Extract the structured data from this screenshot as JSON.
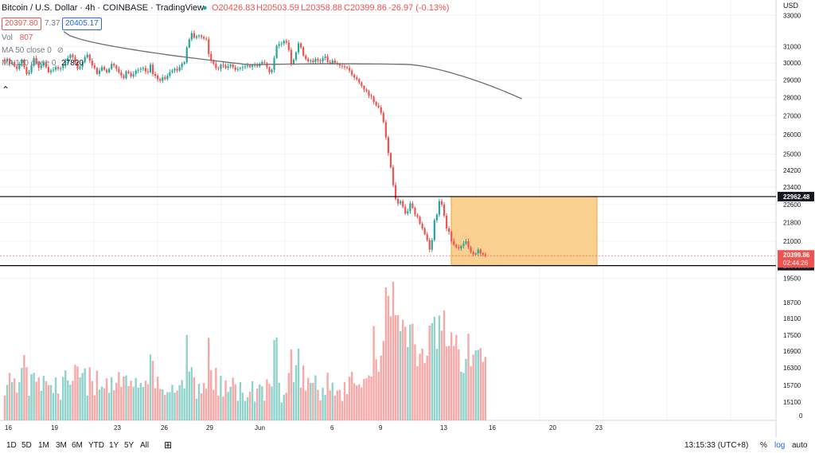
{
  "header": {
    "symbol_text": "Bitcoin / U.S. Dollar · 4h · COINBASE · TradingView",
    "ohlc": {
      "open": "O20426.83",
      "high": "H20503.59",
      "low": "L20358.88",
      "close": "C20399.86",
      "change": "-26.97 (-0.13%)"
    },
    "sell_price": "20397.80",
    "spread": "7.37",
    "buy_price": "20405.17"
  },
  "indicators": {
    "vol_label": "Vol",
    "vol_value": "807",
    "ma50_label": "MA 50 close 0",
    "ma120_label": "MA 120 close 0",
    "ma120_value": "27820"
  },
  "toolbar": {
    "ranges": [
      "1D",
      "5D",
      "1M",
      "3M",
      "6M",
      "YTD",
      "1Y",
      "5Y",
      "All"
    ],
    "time": "13:15:33 (UTC+8)",
    "percent": "%",
    "log": "log",
    "auto": "auto"
  },
  "colors": {
    "up": "#26a69a",
    "down": "#ef5350",
    "up_vol": "#8fd3cc",
    "down_vol": "#f7a9a7",
    "ma": "#6f6f6f",
    "box_fill": "#f8c87d",
    "box_stroke": "#f0a23c",
    "line": "#000000"
  },
  "chart_data": {
    "type": "candlestick",
    "symbol": "BTC/USD",
    "interval": "4h",
    "exchange": "COINBASE",
    "currency_label": "USD",
    "price_axis_ticks": [
      33000,
      31000,
      30000,
      29000,
      28000,
      27000,
      26000,
      25000,
      24200,
      23400,
      22600,
      21800,
      21000,
      19500
    ],
    "volume_axis_ticks": [
      18700,
      18100,
      17500,
      16900,
      16300,
      15700,
      15100,
      0
    ],
    "ylim": [
      19300,
      33600
    ],
    "x_labels": [
      "16",
      "19",
      "23",
      "26",
      "29",
      "Jun",
      "6",
      "9",
      "13",
      "16",
      "20",
      "23"
    ],
    "close_series": [
      30100,
      30250,
      29950,
      30050,
      29800,
      29650,
      29950,
      30200,
      29750,
      29350,
      29450,
      29850,
      30300,
      30050,
      29700,
      29850,
      30050,
      29750,
      29450,
      29550,
      29600,
      29750,
      29650,
      29700,
      29850,
      30100,
      30300,
      30500,
      30350,
      30050,
      29650,
      29750,
      30050,
      30350,
      30500,
      30150,
      29850,
      29700,
      29350,
      29550,
      29750,
      29600,
      29450,
      29650,
      29950,
      29850,
      29650,
      29450,
      29250,
      29100,
      29500,
      29400,
      29200,
      29350,
      29550,
      29600,
      29650,
      29700,
      29500,
      29450,
      29900,
      29350,
      29250,
      29050,
      28950,
      29150,
      29050,
      29250,
      29450,
      29550,
      29650,
      29550,
      29750,
      29950,
      30050,
      30950,
      31450,
      31850,
      31550,
      31650,
      31700,
      31600,
      31500,
      31450,
      30550,
      30150,
      29950,
      29700,
      29650,
      29900,
      29850,
      29700,
      29800,
      29900,
      29750,
      29600,
      29650,
      29700,
      29750,
      29800,
      29850,
      29750,
      29850,
      29900,
      29800,
      29950,
      30050,
      30000,
      29750,
      29450,
      29600,
      30300,
      31050,
      31150,
      31200,
      31350,
      31250,
      30800,
      29950,
      30200,
      30650,
      31200,
      30950,
      30450,
      30250,
      30100,
      30150,
      30050,
      30250,
      30150,
      30100,
      30300,
      30400,
      30050,
      29950,
      30150,
      30000,
      29950,
      29850,
      29800,
      29750,
      29700,
      29550,
      29300,
      29150,
      29050,
      28850,
      28650,
      28450,
      28350,
      28100,
      28050,
      27750,
      27550,
      27450,
      27150,
      26650,
      25850,
      25050,
      24350,
      23500,
      22850,
      22650,
      22750,
      22500,
      22200,
      22300,
      22650,
      22450,
      22150,
      22050,
      21750,
      21550,
      21300,
      21050,
      20650,
      21050,
      21900,
      22150,
      22750,
      22600,
      22100,
      21550,
      21400,
      21000,
      20850,
      20750,
      20700,
      20800,
      20900,
      21000,
      20750,
      20550,
      20450,
      20500,
      20650,
      20500,
      20450,
      20400
    ],
    "ma50_series_start_index": 0,
    "ma50_endpoints": [
      31950,
      27820
    ],
    "horizontal_levels": [
      22962.48,
      20000.0
    ],
    "range_box": {
      "from_index": 160,
      "to_index": 214,
      "upper": 22962.48,
      "lower": 20000.0
    },
    "axis_labels": {
      "level_upper": "22962.48",
      "level_lower": "20000.00",
      "last_price": "20399.86",
      "countdown": "02:44:26"
    }
  }
}
